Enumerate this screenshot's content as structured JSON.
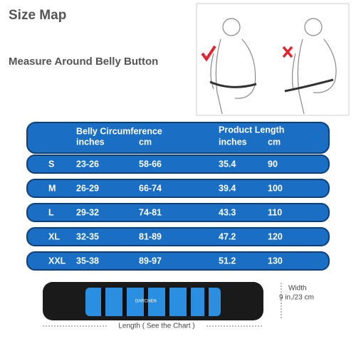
{
  "header": {
    "title": "Size Map",
    "subtitle": "Measure Around Belly Button"
  },
  "table": {
    "group_headers": [
      "Belly Circumference",
      "Product Length"
    ],
    "sub_headers": [
      "inches",
      "cm",
      "inches",
      "cm"
    ],
    "rows": [
      [
        "S",
        "23-26",
        "58-66",
        35.4,
        90
      ],
      [
        "M",
        "26-29",
        "66-74",
        39.4,
        100
      ],
      [
        "L",
        "29-32",
        "74-81",
        43.3,
        110
      ],
      [
        "XL",
        "32-35",
        "81-89",
        47.2,
        120
      ],
      [
        "XXL",
        "35-38",
        "89-97",
        51.2,
        130
      ]
    ]
  },
  "product": {
    "brand": "DARCHEN",
    "width_label": "Width",
    "width_value": "9 in./23 cm",
    "length_label": "Length ( See the Chart )"
  }
}
